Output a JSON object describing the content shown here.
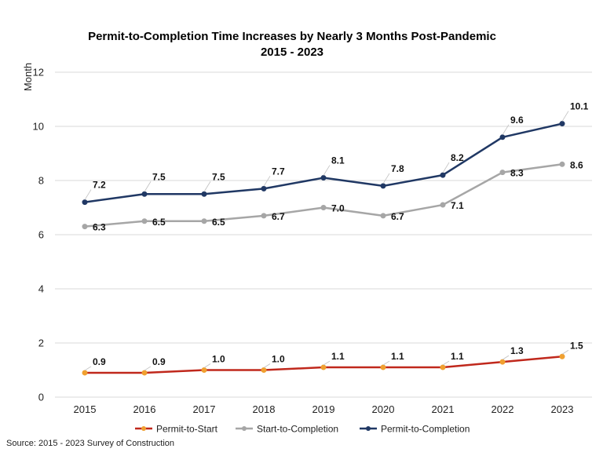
{
  "chart_data": {
    "type": "line",
    "title_line1": "Permit-to-Completion  Time Increases by Nearly  3 Months Post-Pandemic",
    "title_line2": "2015 - 2023",
    "ylabel": "Month",
    "xlabel": "",
    "ylim": [
      0,
      12
    ],
    "yticks": [
      0,
      2,
      4,
      6,
      8,
      10,
      12
    ],
    "grid": true,
    "legend_position": "bottom",
    "categories": [
      "2015",
      "2016",
      "2017",
      "2018",
      "2019",
      "2020",
      "2021",
      "2022",
      "2023"
    ],
    "series": [
      {
        "name": "Permit-to-Start",
        "color": "#c0281c",
        "marker_color": "#f0a030",
        "values": [
          0.9,
          0.9,
          1.0,
          1.0,
          1.1,
          1.1,
          1.1,
          1.3,
          1.5
        ],
        "labels": [
          "0.9",
          "0.9",
          "1.0",
          "1.0",
          "1.1",
          "1.1",
          "1.1",
          "1.3",
          "1.5"
        ]
      },
      {
        "name": "Start-to-Completion",
        "color": "#a6a6a6",
        "marker_color": "#a6a6a6",
        "values": [
          6.3,
          6.5,
          6.5,
          6.7,
          7.0,
          6.7,
          7.1,
          8.3,
          8.6
        ],
        "labels": [
          "6.3",
          "6.5",
          "6.5",
          "6.7",
          "7.0",
          "6.7",
          "7.1",
          "8.3",
          "8.6"
        ]
      },
      {
        "name": "Permit-to-Completion",
        "color": "#203864",
        "marker_color": "#203864",
        "values": [
          7.2,
          7.5,
          7.5,
          7.7,
          8.1,
          7.8,
          8.2,
          9.6,
          10.1
        ],
        "labels": [
          "7.2",
          "7.5",
          "7.5",
          "7.7",
          "8.1",
          "7.8",
          "8.2",
          "9.6",
          "10.1"
        ]
      }
    ],
    "source": "Source: 2015 - 2023 Survey  of Construction"
  }
}
